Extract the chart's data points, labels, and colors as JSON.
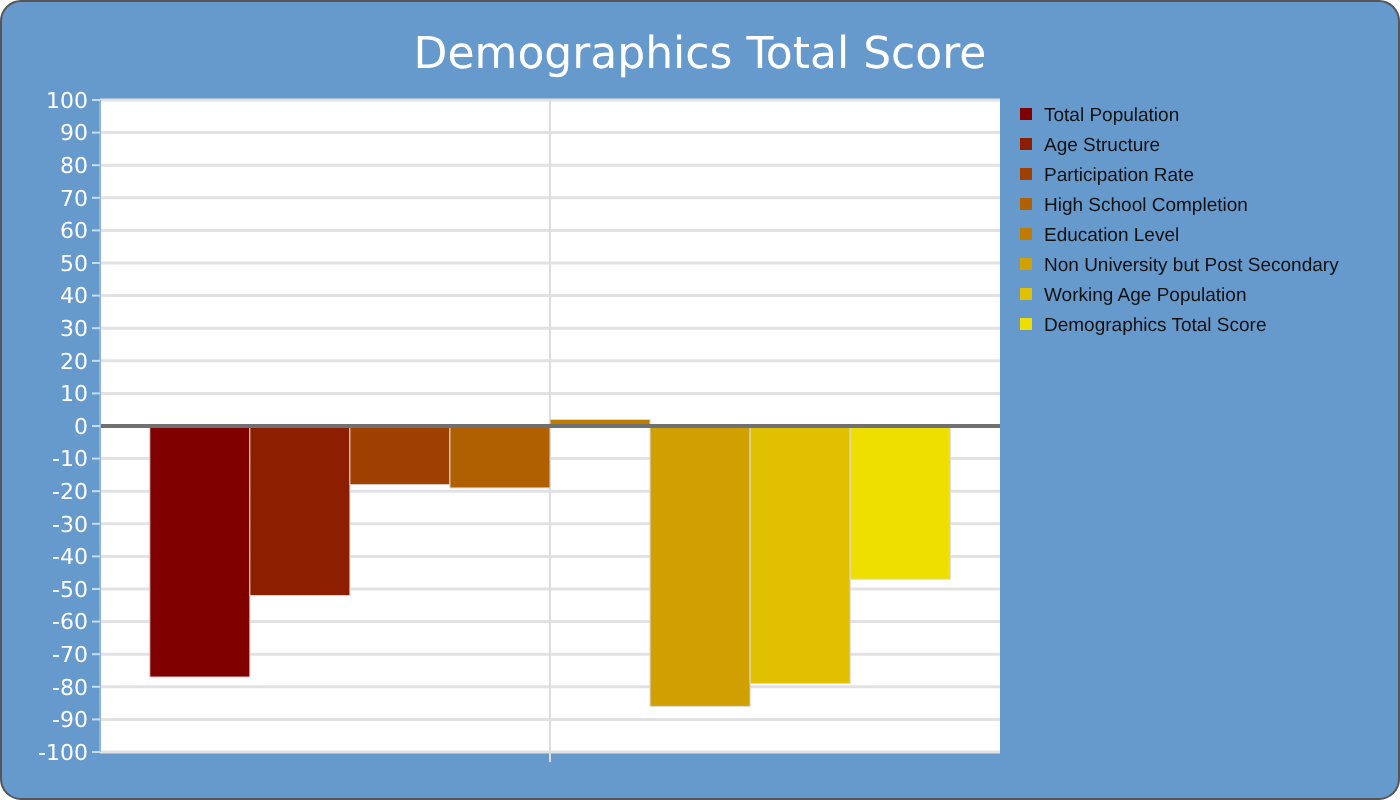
{
  "chart_data": {
    "type": "bar",
    "title": "Demographics Total Score",
    "categories": [
      null
    ],
    "series": [
      {
        "name": "Total Population",
        "color": "#800000",
        "values": [
          -77
        ]
      },
      {
        "name": "Age Structure",
        "color": "#8e1e00",
        "values": [
          -52
        ]
      },
      {
        "name": "Participation Rate",
        "color": "#a04000",
        "values": [
          -18
        ]
      },
      {
        "name": "High School Completion",
        "color": "#b06000",
        "values": [
          -19
        ]
      },
      {
        "name": "Education Level",
        "color": "#be7c00",
        "values": [
          2
        ]
      },
      {
        "name": "Non University but Post Secondary",
        "color": "#d0a000",
        "values": [
          -86
        ]
      },
      {
        "name": "Working Age Population",
        "color": "#e0c000",
        "values": [
          -79
        ]
      },
      {
        "name": "Demographics Total Score",
        "color": "#eedf00",
        "values": [
          -47
        ]
      }
    ],
    "ylim": [
      -100,
      100
    ],
    "yticks": [
      -100,
      -90,
      -80,
      -70,
      -60,
      -50,
      -40,
      -30,
      -20,
      -10,
      0,
      10,
      20,
      30,
      40,
      50,
      60,
      70,
      80,
      90,
      100
    ],
    "grid": true,
    "legend": "right"
  }
}
